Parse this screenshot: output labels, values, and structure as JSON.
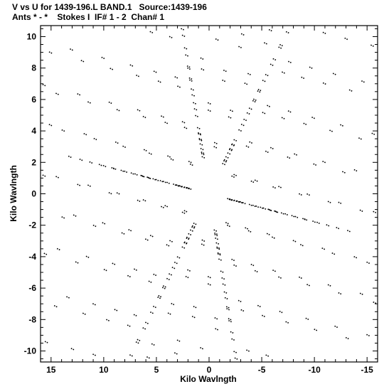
{
  "header": {
    "line1": "V vs U for 1439-196.L BAND.1   Source:1439-196",
    "line2": "Ants * - *    Stokes I  IF# 1 - 2  Chan# 1"
  },
  "chart_data": {
    "type": "scatter",
    "title": "V vs U for 1439-196.L BAND.1   Source:1439-196",
    "subtitle": "Ants * - *    Stokes I  IF# 1 - 2  Chan# 1",
    "xlabel": "Kilo Wavlngth",
    "ylabel": "Kilo Wavlngth",
    "xlim": [
      16,
      -16
    ],
    "ylim": [
      -10.7,
      10.7
    ],
    "x_reversed": true,
    "xticks": [
      15,
      10,
      5,
      0,
      -5,
      -10,
      -15
    ],
    "xtick_labels": [
      "15",
      "10",
      "5",
      "0",
      "-5",
      "-10",
      "-15"
    ],
    "yticks": [
      10,
      8,
      6,
      4,
      2,
      0,
      -2,
      -4,
      -6,
      -8,
      -10
    ],
    "ytick_labels": [
      "10",
      "8",
      "6",
      "4",
      "2",
      "0",
      "-2",
      "-4",
      "-6",
      "-8",
      "-10"
    ],
    "grid": false,
    "legend": "none",
    "marker_color": "#000000",
    "pattern": {
      "description": "VLA snapshot uv-coverage: baselines along three arms, each sampled over two IFs, plus conjugate points",
      "arm_vectors": [
        [
          -1.09,
          1.51
        ],
        [
          -0.45,
          -1.85
        ],
        [
          1.46,
          0.26
        ]
      ],
      "baseline_lengths": [
        0.96,
        2.33,
        3.87,
        5.72,
        7.77,
        10.03
      ],
      "if_scales": [
        1.0,
        0.92
      ],
      "track_offset": [
        0.16,
        0.05
      ]
    },
    "series": []
  }
}
